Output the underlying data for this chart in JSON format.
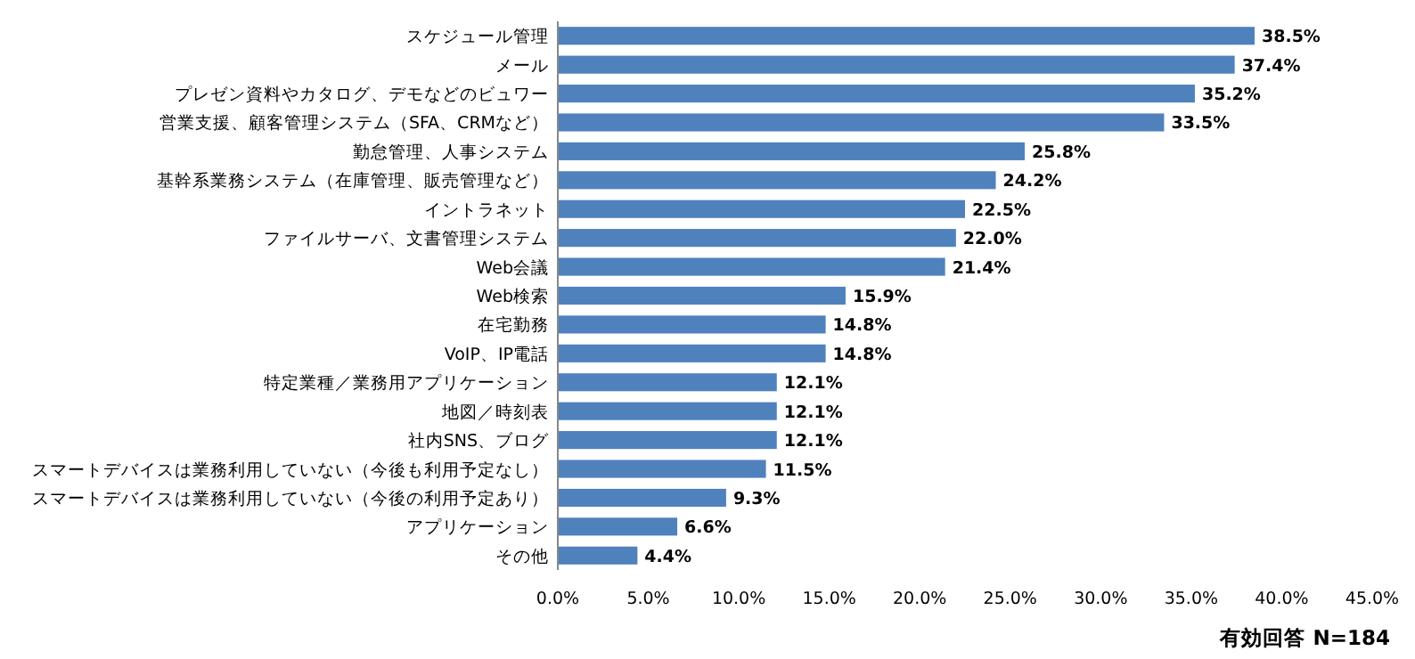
{
  "chart_data": {
    "type": "bar",
    "orientation": "horizontal",
    "categories": [
      "スケジュール管理",
      "メール",
      "プレゼン資料やカタログ、デモなどのビュワー",
      "営業支援、顧客管理システム（SFA、CRMなど）",
      "勤怠管理、人事システム",
      "基幹系業務システム（在庫管理、販売管理など）",
      "イントラネット",
      "ファイルサーバ、文書管理システム",
      "Web会議",
      "Web検索",
      "在宅勤務",
      "VoIP、IP電話",
      "特定業種／業務用アプリケーション",
      "地図／時刻表",
      "社内SNS、ブログ",
      "スマートデバイスは業務利用していない（今後も利用予定なし）",
      "スマートデバイスは業務利用していない（今後の利用予定あり）",
      "アプリケーション",
      "その他"
    ],
    "values": [
      38.5,
      37.4,
      35.2,
      33.5,
      25.8,
      24.2,
      22.5,
      22.0,
      21.4,
      15.9,
      14.8,
      14.8,
      12.1,
      12.1,
      12.1,
      11.5,
      9.3,
      6.6,
      4.4
    ],
    "value_labels": [
      "38.5%",
      "37.4%",
      "35.2%",
      "33.5%",
      "25.8%",
      "24.2%",
      "22.5%",
      "22.0%",
      "21.4%",
      "15.9%",
      "14.8%",
      "14.8%",
      "12.1%",
      "12.1%",
      "12.1%",
      "11.5%",
      "9.3%",
      "6.6%",
      "4.4%"
    ],
    "color": "#4f81bd",
    "xlim": [
      0,
      45
    ],
    "xticks": [
      {
        "value": 0,
        "label": "0.0%"
      },
      {
        "value": 5,
        "label": "5.0%"
      },
      {
        "value": 10,
        "label": "10.0%"
      },
      {
        "value": 15,
        "label": "15.0%"
      },
      {
        "value": 20,
        "label": "20.0%"
      },
      {
        "value": 25,
        "label": "25.0%"
      },
      {
        "value": 30,
        "label": "30.0%"
      },
      {
        "value": 35,
        "label": "35.0%"
      },
      {
        "value": 40,
        "label": "40.0%"
      },
      {
        "value": 45,
        "label": "45.0%"
      }
    ],
    "grid": false,
    "annotations": [
      "有効回答 N=184"
    ]
  }
}
